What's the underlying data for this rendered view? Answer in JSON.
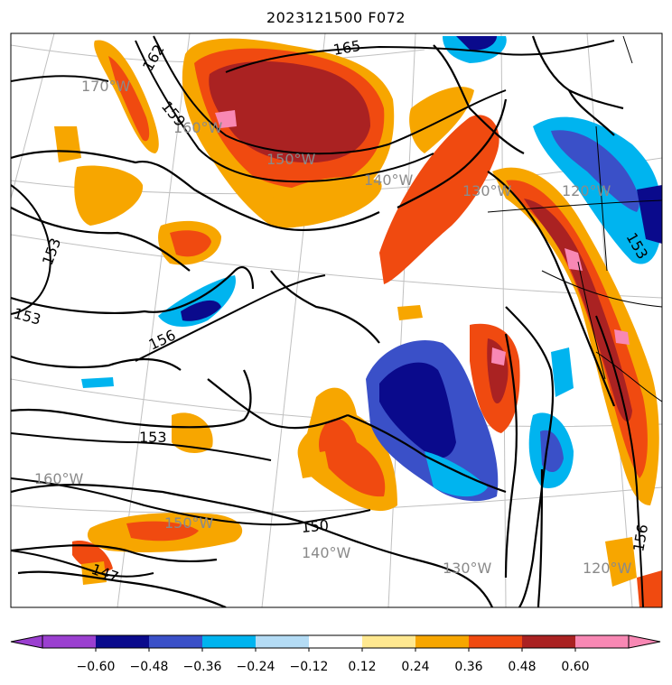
{
  "title": "2023121500 F072",
  "map": {
    "longitude_labels": [
      "170°W",
      "160°W",
      "150°W",
      "140°W",
      "130°W",
      "120°W",
      "160°W",
      "150°W",
      "140°W",
      "130°W",
      "120°W"
    ],
    "contour_labels": [
      "165",
      "162",
      "159",
      "153",
      "153",
      "156",
      "153",
      "150",
      "147",
      "153",
      "156"
    ]
  },
  "colorbar": {
    "ticks": [
      "−0.60",
      "−0.48",
      "−0.36",
      "−0.24",
      "−0.12",
      "0.12",
      "0.24",
      "0.36",
      "0.48",
      "0.60"
    ],
    "colors": [
      "#9b3fd0",
      "#0a0a8c",
      "#3a50c8",
      "#00b4ef",
      "#b4dcf5",
      "#ffffff",
      "#ffe890",
      "#f7a600",
      "#f04a10",
      "#aa2222",
      "#f888b4"
    ]
  }
}
